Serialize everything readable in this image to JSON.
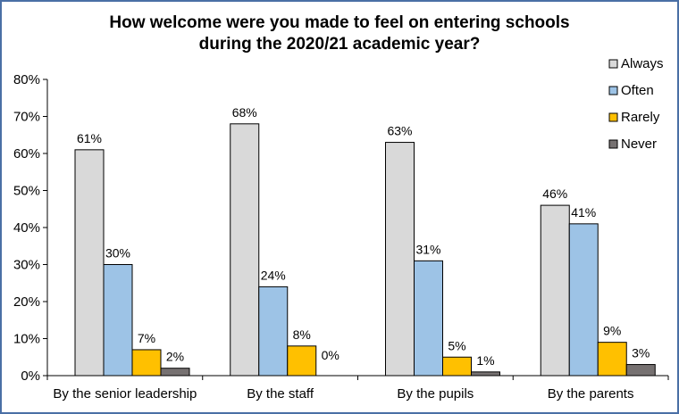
{
  "chart_data": {
    "type": "bar",
    "title": "How welcome were you made to feel on entering schools\nduring the 2020/21 academic year?",
    "categories": [
      "By the senior leadership",
      "By the staff",
      "By the pupils",
      "By the parents"
    ],
    "series": [
      {
        "name": "Always",
        "values": [
          61,
          68,
          63,
          46
        ],
        "labels": [
          "61%",
          "68%",
          "63%",
          "46%"
        ],
        "color": "#d9d9d9"
      },
      {
        "name": "Often",
        "values": [
          30,
          24,
          31,
          41
        ],
        "labels": [
          "30%",
          "24%",
          "31%",
          "41%"
        ],
        "color": "#9dc3e6"
      },
      {
        "name": "Rarely",
        "values": [
          7,
          8,
          5,
          9
        ],
        "labels": [
          "7%",
          "8%",
          "5%",
          "9%"
        ],
        "color": "#ffc000"
      },
      {
        "name": "Never",
        "values": [
          2,
          0,
          1,
          3
        ],
        "labels": [
          "2%",
          "0%",
          "1%",
          "3%"
        ],
        "color": "#767171"
      }
    ],
    "y_ticks": [
      "0%",
      "10%",
      "20%",
      "30%",
      "40%",
      "50%",
      "60%",
      "70%",
      "80%"
    ],
    "ylim": [
      0,
      80
    ],
    "legend_position": "right",
    "grid": false
  }
}
